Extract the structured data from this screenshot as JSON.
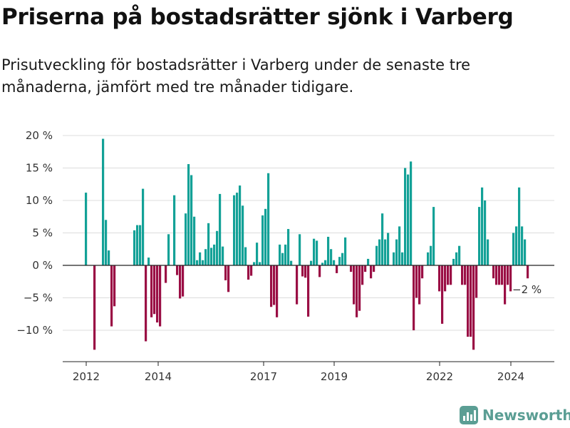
{
  "title": "Priserna på bostadsrätter sjönk i Varberg",
  "subtitle": "Prisutveckling för bostadsrätter i Varberg under de senaste tre månaderna, jämfört med tre månader tidigare.",
  "brand": "Newsworthy",
  "colors": {
    "positive": "#13a197",
    "negative": "#9a0e44",
    "brand": "#5b9e94"
  },
  "chart_data": {
    "type": "bar",
    "ylim": [
      -15,
      20
    ],
    "yticks": [
      20,
      15,
      10,
      5,
      0,
      -5,
      -10
    ],
    "ytick_labels": [
      "20 %",
      "15 %",
      "10 %",
      "5 %",
      "0 %",
      "−5 %",
      "−10 %"
    ],
    "xticks": [
      "2012",
      "2014",
      "2017",
      "2019",
      "2022",
      "2024"
    ],
    "last_label": "−2 %",
    "grid": true,
    "values": [
      11.2,
      0,
      0,
      -13,
      0,
      0,
      19.5,
      7,
      2.3,
      -9.4,
      -6.3,
      0,
      0,
      0,
      0,
      0,
      0,
      5.4,
      6.2,
      6.2,
      11.8,
      -11.7,
      1.2,
      -8,
      -7.5,
      -8.8,
      -9.4,
      0,
      -2.7,
      4.8,
      0,
      10.8,
      -1.5,
      -5.1,
      -4.8,
      8,
      15.6,
      13.9,
      7.5,
      0.8,
      2,
      0.8,
      2.5,
      6.5,
      2.7,
      3.2,
      5.3,
      11,
      2.9,
      -2.3,
      -4.1,
      0,
      10.8,
      11.2,
      12.3,
      9.2,
      2.8,
      -2.2,
      -1.6,
      0.5,
      3.5,
      0.5,
      7.7,
      8.7,
      14.2,
      -6.4,
      -6.1,
      -8,
      3.2,
      1.9,
      3.2,
      5.6,
      0.7,
      0,
      -6,
      4.8,
      -1.7,
      -1.9,
      -7.9,
      0.7,
      4.1,
      3.8,
      -1.8,
      0.4,
      0.8,
      4.4,
      2.5,
      0.8,
      -1.2,
      1.3,
      1.9,
      4.3,
      0,
      -1,
      -6,
      -8,
      -7,
      -3,
      -1,
      1,
      -2,
      -1,
      3,
      4,
      8,
      4,
      5,
      0,
      2,
      4,
      6,
      2,
      15,
      14,
      16,
      -10,
      -5,
      -6,
      -2,
      0,
      2,
      3,
      9,
      0,
      -4,
      -9,
      -4,
      -3,
      -3,
      1,
      2,
      3,
      -3,
      -3,
      -11,
      -11,
      -13,
      -5,
      9,
      12,
      10,
      4,
      0,
      -2,
      -3,
      -3,
      -3,
      -6,
      -3,
      -4,
      5,
      6,
      12,
      6,
      4,
      -2
    ]
  }
}
